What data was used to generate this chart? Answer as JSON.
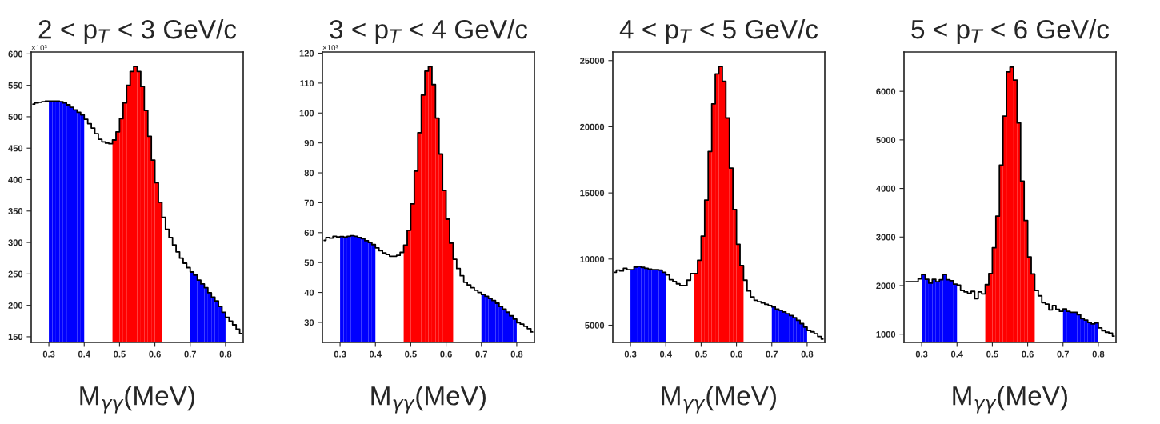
{
  "chart_data": [
    {
      "type": "histogram",
      "title": "2 < p$_{T}$ < 3 GeV/c",
      "xlabel": "M$_{γγ}$(MeV)",
      "annotations": [
        "×10³"
      ],
      "bins": [
        0.25,
        0.26,
        0.27,
        0.28,
        0.29,
        0.3,
        0.31,
        0.32,
        0.33,
        0.34,
        0.35,
        0.36,
        0.37,
        0.38,
        0.39,
        0.4,
        0.41,
        0.42,
        0.43,
        0.44,
        0.45,
        0.46,
        0.47,
        0.48,
        0.49,
        0.5,
        0.51,
        0.52,
        0.53,
        0.54,
        0.55,
        0.56,
        0.57,
        0.58,
        0.59,
        0.6,
        0.61,
        0.62,
        0.63,
        0.64,
        0.65,
        0.66,
        0.67,
        0.68,
        0.69,
        0.7,
        0.71,
        0.72,
        0.73,
        0.74,
        0.75,
        0.76,
        0.77,
        0.78,
        0.79,
        0.8,
        0.81,
        0.82,
        0.83,
        0.84,
        0.85
      ],
      "series": [
        {
          "type": "step",
          "color": "#000000",
          "x": [
            0.255,
            0.265,
            0.275,
            0.285,
            0.295,
            0.305,
            0.315,
            0.325,
            0.335,
            0.345,
            0.355,
            0.365,
            0.375,
            0.385,
            0.395,
            0.405,
            0.415,
            0.425,
            0.435,
            0.445,
            0.455,
            0.465,
            0.475,
            0.485,
            0.495,
            0.505,
            0.515,
            0.525,
            0.535,
            0.545,
            0.555,
            0.565,
            0.575,
            0.585,
            0.595,
            0.605,
            0.615,
            0.625,
            0.635,
            0.645,
            0.655,
            0.665,
            0.675,
            0.685,
            0.695,
            0.705,
            0.715,
            0.725,
            0.735,
            0.745,
            0.755,
            0.765,
            0.775,
            0.785,
            0.795,
            0.805,
            0.815,
            0.825,
            0.835,
            0.845
          ],
          "values": [
            520,
            522,
            523,
            524,
            525,
            525,
            525,
            525,
            524,
            522,
            519,
            515,
            511,
            507,
            503,
            496,
            489,
            482,
            473,
            464,
            460,
            458,
            457,
            463,
            476,
            497,
            522,
            550,
            572,
            580,
            572,
            548,
            510,
            469,
            431,
            395,
            364,
            340,
            321,
            308,
            296,
            285,
            275,
            267,
            260,
            253,
            248,
            240,
            234,
            228,
            220,
            213,
            207,
            198,
            189,
            181,
            175,
            169,
            162,
            155
          ]
        },
        {
          "type": "histogram",
          "color": "#0000ff",
          "values": [
            null,
            null,
            null,
            null,
            null,
            525,
            525,
            525,
            524,
            522,
            519,
            515,
            511,
            507,
            503,
            null,
            null,
            null,
            null,
            null,
            null,
            null,
            null,
            null,
            null,
            null,
            null,
            null,
            null,
            null,
            null,
            null,
            null,
            null,
            null,
            null,
            null,
            null,
            null,
            null,
            null,
            null,
            null,
            null,
            null,
            253,
            248,
            240,
            234,
            228,
            220,
            213,
            207,
            198,
            189,
            null,
            null,
            null,
            null,
            null
          ]
        },
        {
          "type": "histogram",
          "color": "#ff0000",
          "values": [
            null,
            null,
            null,
            null,
            null,
            null,
            null,
            null,
            null,
            null,
            null,
            null,
            null,
            null,
            null,
            null,
            null,
            null,
            null,
            null,
            null,
            null,
            null,
            463,
            476,
            497,
            522,
            550,
            572,
            580,
            572,
            548,
            510,
            469,
            431,
            395,
            364,
            null,
            null,
            null,
            null,
            null,
            null,
            null,
            null,
            null,
            null,
            null,
            null,
            null,
            null,
            null,
            null,
            null,
            null,
            null,
            null,
            null,
            null,
            null
          ]
        }
      ],
      "xlim": [
        0.25,
        0.85
      ],
      "xticks": [
        0.3,
        0.4,
        0.5,
        0.6,
        0.7,
        0.8
      ],
      "ylim": [
        141,
        603
      ],
      "yticks": [
        150,
        200,
        250,
        300,
        350,
        400,
        450,
        500,
        550,
        600
      ]
    },
    {
      "type": "histogram",
      "title": "3 < p$_{T}$ < 4 GeV/c",
      "xlabel": "M$_{γγ}$(MeV)",
      "annotations": [
        "×10³"
      ],
      "bins": [
        0.25,
        0.26,
        0.27,
        0.28,
        0.29,
        0.3,
        0.31,
        0.32,
        0.33,
        0.34,
        0.35,
        0.36,
        0.37,
        0.38,
        0.39,
        0.4,
        0.41,
        0.42,
        0.43,
        0.44,
        0.45,
        0.46,
        0.47,
        0.48,
        0.49,
        0.5,
        0.51,
        0.52,
        0.53,
        0.54,
        0.55,
        0.56,
        0.57,
        0.58,
        0.59,
        0.6,
        0.61,
        0.62,
        0.63,
        0.64,
        0.65,
        0.66,
        0.67,
        0.68,
        0.69,
        0.7,
        0.71,
        0.72,
        0.73,
        0.74,
        0.75,
        0.76,
        0.77,
        0.78,
        0.79,
        0.8,
        0.81,
        0.82,
        0.83,
        0.84,
        0.85
      ],
      "series": [
        {
          "type": "step",
          "color": "#000000",
          "x": [
            0.255,
            0.265,
            0.275,
            0.285,
            0.295,
            0.305,
            0.315,
            0.325,
            0.335,
            0.345,
            0.355,
            0.365,
            0.375,
            0.385,
            0.395,
            0.405,
            0.415,
            0.425,
            0.435,
            0.445,
            0.455,
            0.465,
            0.475,
            0.485,
            0.495,
            0.505,
            0.515,
            0.525,
            0.535,
            0.545,
            0.555,
            0.565,
            0.575,
            0.585,
            0.595,
            0.605,
            0.615,
            0.625,
            0.635,
            0.645,
            0.655,
            0.665,
            0.675,
            0.685,
            0.695,
            0.705,
            0.715,
            0.725,
            0.735,
            0.745,
            0.755,
            0.765,
            0.775,
            0.785,
            0.795,
            0.805,
            0.815,
            0.825,
            0.835,
            0.845
          ],
          "values": [
            57.4,
            58.4,
            58.2,
            58.8,
            58.6,
            58.7,
            58.5,
            58.8,
            59.0,
            58.8,
            58.4,
            58.0,
            57.3,
            56.7,
            56.0,
            54.9,
            54.0,
            53.2,
            52.7,
            52.1,
            52.1,
            52.4,
            53.4,
            55.8,
            60.8,
            69.6,
            80.6,
            93.4,
            106,
            114,
            115.5,
            109.5,
            98.3,
            86.3,
            74.1,
            64.5,
            56.5,
            51.1,
            48.0,
            45.6,
            43.4,
            42.5,
            41.6,
            40.7,
            40.0,
            39.3,
            38.7,
            38.0,
            37.3,
            36.4,
            35.3,
            34.4,
            33.4,
            32.2,
            31.1,
            29.9,
            29.4,
            28.7,
            27.9,
            26.8
          ]
        },
        {
          "type": "histogram",
          "color": "#0000ff",
          "values": [
            null,
            null,
            null,
            null,
            null,
            58.7,
            58.5,
            58.8,
            59.0,
            58.8,
            58.4,
            58.0,
            57.3,
            56.7,
            56.0,
            null,
            null,
            null,
            null,
            null,
            null,
            null,
            null,
            null,
            null,
            null,
            null,
            null,
            null,
            null,
            null,
            null,
            null,
            null,
            null,
            null,
            null,
            null,
            null,
            null,
            null,
            null,
            null,
            null,
            null,
            39.3,
            38.7,
            38.0,
            37.3,
            36.4,
            35.3,
            34.4,
            33.4,
            32.2,
            31.1,
            null,
            null,
            null,
            null,
            null
          ]
        },
        {
          "type": "histogram",
          "color": "#ff0000",
          "values": [
            null,
            null,
            null,
            null,
            null,
            null,
            null,
            null,
            null,
            null,
            null,
            null,
            null,
            null,
            null,
            null,
            null,
            null,
            null,
            null,
            null,
            null,
            null,
            55.8,
            60.8,
            69.6,
            80.6,
            93.4,
            106,
            114,
            115.5,
            109.5,
            98.3,
            86.3,
            74.1,
            64.5,
            56.5,
            null,
            null,
            null,
            null,
            null,
            null,
            null,
            null,
            null,
            null,
            null,
            null,
            null,
            null,
            null,
            null,
            null,
            null,
            null,
            null,
            null,
            null,
            null
          ]
        }
      ],
      "xlim": [
        0.25,
        0.85
      ],
      "xticks": [
        0.3,
        0.4,
        0.5,
        0.6,
        0.7,
        0.8
      ],
      "ylim": [
        23.3,
        120.4
      ],
      "yticks": [
        30,
        40,
        50,
        60,
        70,
        80,
        90,
        100,
        110,
        120
      ]
    },
    {
      "type": "histogram",
      "title": "4 < p$_{T}$ < 5 GeV/c",
      "xlabel": "M$_{γγ}$(MeV)",
      "bins": [
        0.25,
        0.26,
        0.27,
        0.28,
        0.29,
        0.3,
        0.31,
        0.32,
        0.33,
        0.34,
        0.35,
        0.36,
        0.37,
        0.38,
        0.39,
        0.4,
        0.41,
        0.42,
        0.43,
        0.44,
        0.45,
        0.46,
        0.47,
        0.48,
        0.49,
        0.5,
        0.51,
        0.52,
        0.53,
        0.54,
        0.55,
        0.56,
        0.57,
        0.58,
        0.59,
        0.6,
        0.61,
        0.62,
        0.63,
        0.64,
        0.65,
        0.66,
        0.67,
        0.68,
        0.69,
        0.7,
        0.71,
        0.72,
        0.73,
        0.74,
        0.75,
        0.76,
        0.77,
        0.78,
        0.79,
        0.8,
        0.81,
        0.82,
        0.83,
        0.84,
        0.85
      ],
      "series": [
        {
          "type": "step",
          "color": "#000000",
          "x": [
            0.255,
            0.265,
            0.275,
            0.285,
            0.295,
            0.305,
            0.315,
            0.325,
            0.335,
            0.345,
            0.355,
            0.365,
            0.375,
            0.385,
            0.395,
            0.405,
            0.415,
            0.425,
            0.435,
            0.445,
            0.455,
            0.465,
            0.475,
            0.485,
            0.495,
            0.505,
            0.515,
            0.525,
            0.535,
            0.545,
            0.555,
            0.565,
            0.575,
            0.585,
            0.595,
            0.605,
            0.615,
            0.625,
            0.635,
            0.645,
            0.655,
            0.665,
            0.675,
            0.685,
            0.695,
            0.705,
            0.715,
            0.725,
            0.735,
            0.745,
            0.755,
            0.765,
            0.775,
            0.785,
            0.795,
            0.805,
            0.815,
            0.825,
            0.835,
            0.845
          ],
          "values": [
            9000,
            9160,
            9100,
            9300,
            9200,
            9200,
            9400,
            9450,
            9370,
            9300,
            9240,
            9200,
            9200,
            9160,
            9000,
            8800,
            8440,
            8300,
            8130,
            8000,
            8000,
            8400,
            8900,
            8900,
            9910,
            11730,
            14460,
            18130,
            21730,
            23990,
            24560,
            23440,
            20660,
            16880,
            13750,
            11120,
            9510,
            8400,
            7590,
            7140,
            6880,
            6780,
            6680,
            6580,
            6480,
            6380,
            6210,
            6130,
            6010,
            5870,
            5730,
            5570,
            5370,
            5120,
            4860,
            4600,
            4500,
            4360,
            4150,
            3950
          ]
        },
        {
          "type": "histogram",
          "color": "#0000ff",
          "values": [
            null,
            null,
            null,
            null,
            null,
            9200,
            9400,
            9450,
            9370,
            9300,
            9240,
            9200,
            9200,
            9160,
            9000,
            null,
            null,
            null,
            null,
            null,
            null,
            null,
            null,
            null,
            null,
            null,
            null,
            null,
            null,
            null,
            null,
            null,
            null,
            null,
            null,
            null,
            null,
            null,
            null,
            null,
            null,
            null,
            null,
            null,
            null,
            6380,
            6210,
            6130,
            6010,
            5870,
            5730,
            5570,
            5370,
            5120,
            4860,
            null,
            null,
            null,
            null,
            null
          ]
        },
        {
          "type": "histogram",
          "color": "#ff0000",
          "values": [
            null,
            null,
            null,
            null,
            null,
            null,
            null,
            null,
            null,
            null,
            null,
            null,
            null,
            null,
            null,
            null,
            null,
            null,
            null,
            null,
            null,
            null,
            null,
            8900,
            9910,
            11730,
            14460,
            18130,
            21730,
            23990,
            24560,
            23440,
            20660,
            16880,
            13750,
            11120,
            9510,
            null,
            null,
            null,
            null,
            null,
            null,
            null,
            null,
            null,
            null,
            null,
            null,
            null,
            null,
            null,
            null,
            null,
            null,
            null,
            null,
            null,
            null,
            null
          ]
        }
      ],
      "xlim": [
        0.25,
        0.85
      ],
      "xticks": [
        0.3,
        0.4,
        0.5,
        0.6,
        0.7,
        0.8
      ],
      "ylim": [
        3700,
        25650
      ],
      "yticks": [
        5000,
        10000,
        15000,
        20000,
        25000
      ]
    },
    {
      "type": "histogram",
      "title": "5 < p$_{T}$ < 6 GeV/c",
      "xlabel": "M$_{γγ}$(MeV)",
      "bins": [
        0.25,
        0.26,
        0.27,
        0.28,
        0.29,
        0.3,
        0.31,
        0.32,
        0.33,
        0.34,
        0.35,
        0.36,
        0.37,
        0.38,
        0.39,
        0.4,
        0.41,
        0.42,
        0.43,
        0.44,
        0.45,
        0.46,
        0.47,
        0.48,
        0.49,
        0.5,
        0.51,
        0.52,
        0.53,
        0.54,
        0.55,
        0.56,
        0.57,
        0.58,
        0.59,
        0.6,
        0.61,
        0.62,
        0.63,
        0.64,
        0.65,
        0.66,
        0.67,
        0.68,
        0.69,
        0.7,
        0.71,
        0.72,
        0.73,
        0.74,
        0.75,
        0.76,
        0.77,
        0.78,
        0.79,
        0.8,
        0.81,
        0.82,
        0.83,
        0.84,
        0.85
      ],
      "series": [
        {
          "type": "step",
          "color": "#000000",
          "x": [
            0.255,
            0.265,
            0.275,
            0.285,
            0.295,
            0.305,
            0.315,
            0.325,
            0.335,
            0.345,
            0.355,
            0.365,
            0.375,
            0.385,
            0.395,
            0.405,
            0.415,
            0.425,
            0.435,
            0.445,
            0.455,
            0.465,
            0.475,
            0.485,
            0.495,
            0.505,
            0.515,
            0.525,
            0.535,
            0.545,
            0.555,
            0.565,
            0.575,
            0.585,
            0.595,
            0.605,
            0.615,
            0.625,
            0.635,
            0.645,
            0.655,
            0.665,
            0.675,
            0.685,
            0.695,
            0.705,
            0.715,
            0.725,
            0.735,
            0.745,
            0.755,
            0.765,
            0.775,
            0.785,
            0.795,
            0.805,
            0.815,
            0.825,
            0.835,
            0.845
          ],
          "values": [
            2080,
            2080,
            2080,
            2080,
            2140,
            2230,
            2130,
            2050,
            2130,
            2080,
            2120,
            2230,
            2120,
            2100,
            2030,
            2010,
            1900,
            1870,
            1840,
            1880,
            1730,
            1870,
            1830,
            2020,
            2250,
            2780,
            3430,
            4480,
            5490,
            6400,
            6500,
            6230,
            5350,
            4150,
            3340,
            2590,
            2240,
            1900,
            1790,
            1650,
            1620,
            1500,
            1590,
            1510,
            1470,
            1520,
            1470,
            1450,
            1450,
            1400,
            1320,
            1290,
            1240,
            1210,
            1230,
            1130,
            1070,
            1040,
            1020,
            960
          ]
        },
        {
          "type": "histogram",
          "color": "#0000ff",
          "values": [
            null,
            null,
            null,
            null,
            null,
            2230,
            2130,
            2050,
            2130,
            2080,
            2120,
            2230,
            2120,
            2100,
            2030,
            null,
            null,
            null,
            null,
            null,
            null,
            null,
            null,
            null,
            null,
            null,
            null,
            null,
            null,
            null,
            null,
            null,
            null,
            null,
            null,
            null,
            null,
            null,
            null,
            null,
            null,
            null,
            null,
            null,
            null,
            1520,
            1470,
            1450,
            1450,
            1400,
            1320,
            1290,
            1240,
            1210,
            1230,
            null,
            null,
            null,
            null,
            null
          ]
        },
        {
          "type": "histogram",
          "color": "#ff0000",
          "values": [
            null,
            null,
            null,
            null,
            null,
            null,
            null,
            null,
            null,
            null,
            null,
            null,
            null,
            null,
            null,
            null,
            null,
            null,
            null,
            null,
            null,
            null,
            null,
            2020,
            2250,
            2780,
            3430,
            4480,
            5490,
            6400,
            6500,
            6230,
            5350,
            4150,
            3340,
            2590,
            2240,
            null,
            null,
            null,
            null,
            null,
            null,
            null,
            null,
            null,
            null,
            null,
            null,
            null,
            null,
            null,
            null,
            null,
            null,
            null,
            null,
            null,
            null,
            null
          ]
        }
      ],
      "xlim": [
        0.25,
        0.85
      ],
      "xticks": [
        0.3,
        0.4,
        0.5,
        0.6,
        0.7,
        0.8
      ],
      "ylim": [
        830,
        6810
      ],
      "yticks": [
        1000,
        2000,
        3000,
        4000,
        5000,
        6000
      ]
    }
  ]
}
